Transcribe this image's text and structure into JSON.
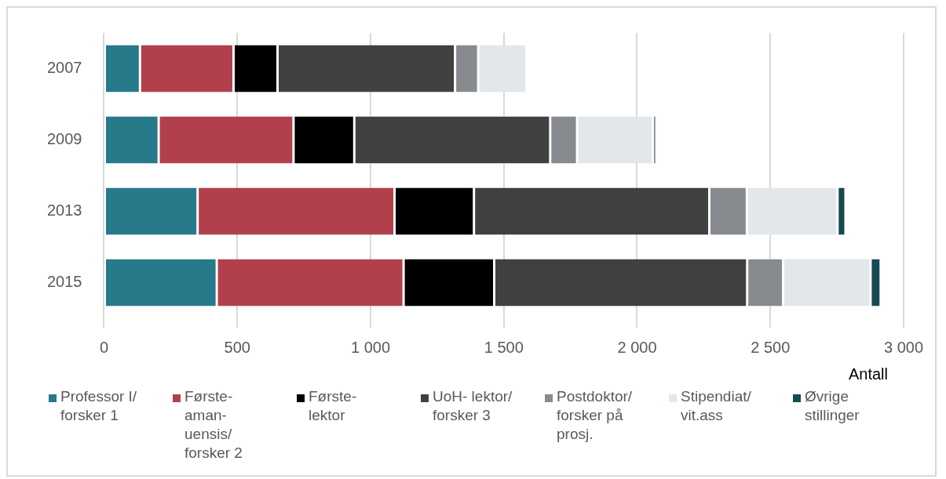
{
  "chart_data": {
    "type": "bar",
    "orientation": "horizontal",
    "stacked": true,
    "xlabel": "Antall",
    "categories": [
      "2007",
      "2009",
      "2013",
      "2015"
    ],
    "series": [
      {
        "name": "Professor I/ forsker 1",
        "color": "#267a8a",
        "values": [
          135,
          205,
          351,
          423
        ]
      },
      {
        "name": "Første- aman- uensis/ forsker 2",
        "color": "#b2404c",
        "values": [
          351,
          506,
          739,
          701
        ]
      },
      {
        "name": "Første- lektor",
        "color": "#000000",
        "values": [
          165,
          228,
          298,
          340
        ]
      },
      {
        "name": "UoH- lektor/ forsker 3",
        "color": "#404040",
        "values": [
          666,
          735,
          883,
          949
        ]
      },
      {
        "name": "Postdoktor/ forsker på prosj.",
        "color": "#878b8f",
        "values": [
          87,
          101,
          141,
          135
        ]
      },
      {
        "name": "Stipendiat/ vit.ass",
        "color": "#e3e7ea",
        "values": [
          181,
          285,
          340,
          328
        ]
      },
      {
        "name": "Øvrige stillinger",
        "color": "#174a54",
        "values": [
          null,
          12,
          30,
          38
        ]
      }
    ],
    "xlim": [
      0,
      3000
    ],
    "xticks": [
      {
        "value": 0,
        "label": "0"
      },
      {
        "value": 500,
        "label": "500"
      },
      {
        "value": 1000,
        "label": "1 000"
      },
      {
        "value": 1500,
        "label": "1 500"
      },
      {
        "value": 2000,
        "label": "2 000"
      },
      {
        "value": 2500,
        "label": "2 500"
      },
      {
        "value": 3000,
        "label": "3 000"
      }
    ],
    "grid": "x",
    "legend": "bottom"
  }
}
